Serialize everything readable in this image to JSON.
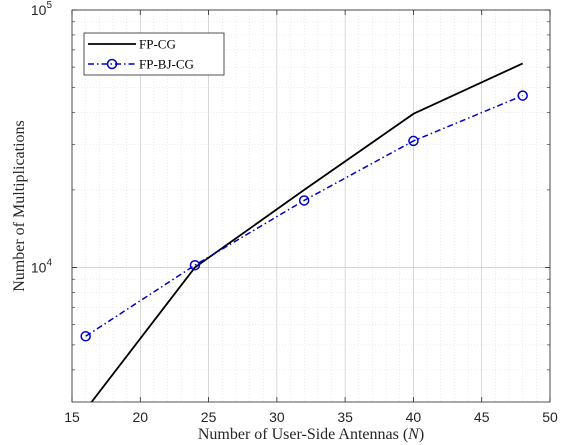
{
  "chart_data": {
    "type": "line",
    "title": "",
    "xlabel": "Number of User-Side Antennas (",
    "xlabel_var": "N",
    "xlabel_close": ")",
    "ylabel": "Number of Multiplications",
    "xlim": [
      15,
      50
    ],
    "ylim": [
      3000,
      100000
    ],
    "yscale": "log",
    "grid": true,
    "legend_position": "top-left",
    "x_ticks": [
      "15",
      "20",
      "25",
      "30",
      "35",
      "40",
      "45",
      "50"
    ],
    "y_ticks": [
      {
        "base": "10",
        "exp": "4",
        "value": 10000
      },
      {
        "base": "10",
        "exp": "5",
        "value": 100000
      }
    ],
    "series": [
      {
        "name": "FP-CG",
        "color": "#000000",
        "style": "solid",
        "marker": "none",
        "x": [
          16,
          24,
          32,
          40,
          48
        ],
        "y": [
          2800,
          10000,
          20000,
          39500,
          62000
        ]
      },
      {
        "name": "FP-BJ-CG",
        "color": "#0000cc",
        "style": "dashdot",
        "marker": "circle",
        "x": [
          16,
          24,
          32,
          40,
          48
        ],
        "y": [
          5400,
          10200,
          18200,
          31000,
          46500
        ]
      }
    ]
  }
}
